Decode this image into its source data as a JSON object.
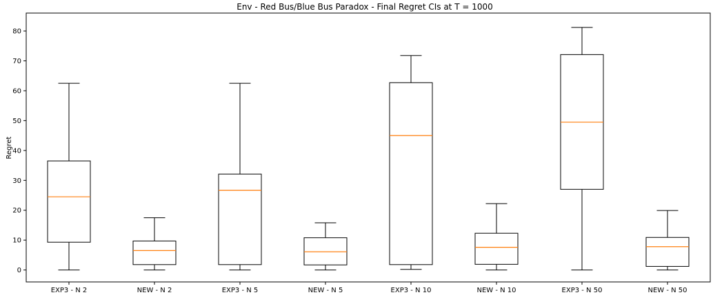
{
  "chart_data": {
    "type": "box",
    "title": "Env - Red Bus/Blue Bus Paradox - Final Regret CIs at T = 1000",
    "ylabel": "Regret",
    "xlabel": "",
    "ylim": [
      -4,
      86
    ],
    "yticks": [
      0,
      10,
      20,
      30,
      40,
      50,
      60,
      70,
      80
    ],
    "grid": false,
    "colors": {
      "box": "#000000",
      "median": "#ff7f0e"
    },
    "categories": [
      "EXP3 - N 2",
      "NEW - N 2",
      "EXP3 - N 5",
      "NEW - N 5",
      "EXP3 - N 10",
      "NEW - N 10",
      "EXP3 - N 50",
      "NEW - N 50"
    ],
    "boxes": [
      {
        "label": "EXP3 - N 2",
        "whisker_low": 0,
        "q1": 9.3,
        "median": 24.5,
        "q3": 36.5,
        "whisker_high": 62.5
      },
      {
        "label": "NEW - N 2",
        "whisker_low": 0,
        "q1": 1.8,
        "median": 6.5,
        "q3": 9.7,
        "whisker_high": 17.5
      },
      {
        "label": "EXP3 - N 5",
        "whisker_low": 0,
        "q1": 1.8,
        "median": 26.7,
        "q3": 32.1,
        "whisker_high": 62.5
      },
      {
        "label": "NEW - N 5",
        "whisker_low": 0,
        "q1": 1.7,
        "median": 6.1,
        "q3": 10.8,
        "whisker_high": 15.8
      },
      {
        "label": "EXP3 - N 10",
        "whisker_low": 0.2,
        "q1": 1.8,
        "median": 45.0,
        "q3": 62.7,
        "whisker_high": 71.8
      },
      {
        "label": "NEW - N 10",
        "whisker_low": 0,
        "q1": 1.9,
        "median": 7.6,
        "q3": 12.3,
        "whisker_high": 22.2
      },
      {
        "label": "EXP3 - N 50",
        "whisker_low": 0,
        "q1": 27.0,
        "median": 49.5,
        "q3": 72.1,
        "whisker_high": 81.2
      },
      {
        "label": "NEW - N 50",
        "whisker_low": 0,
        "q1": 1.2,
        "median": 7.8,
        "q3": 10.9,
        "whisker_high": 19.9
      }
    ]
  }
}
